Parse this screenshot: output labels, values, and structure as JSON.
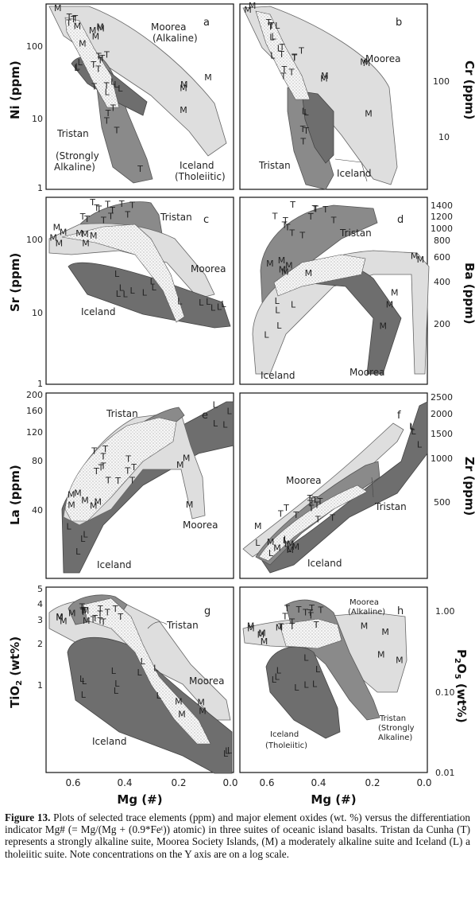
{
  "caption": {
    "label": "Figure 13.",
    "text": " Plots of selected trace elements (ppm) and major element oxides (wt. %) versus the differentiation indicator Mg# (= Mg/(Mg + (0.9*Feᵗ)) atomic) in three suites of oceanic island basalts. Tristan da Cunha (T) represents a strongly alkaline suite, Moorea Society Islands, (M) a moderately alkaline suite and Iceland (L) a tholeiitic suite. Note concentrations on the Y axis are on a log scale."
  },
  "x_axis": {
    "label": "Mg (#)",
    "ticks": [
      "0.6",
      "0.4",
      "0.2",
      "0.0"
    ]
  },
  "chart_data": [
    {
      "type": "scatter",
      "panel": "a",
      "ylabel": "Ni (ppm)",
      "yscale": "log",
      "ylim": [
        1,
        400
      ],
      "yticks": [
        "1",
        "10",
        "100"
      ],
      "xlim": [
        0.7,
        0.0
      ],
      "labels": [
        "Moorea",
        "(Alkaline)",
        "Tristan",
        "(Strongly",
        "Alkaline)",
        "Iceland",
        "(Tholeiitic)"
      ],
      "series": [
        {
          "name": "T",
          "symbol": "T"
        },
        {
          "name": "M",
          "symbol": "M"
        },
        {
          "name": "L",
          "symbol": "L"
        }
      ]
    },
    {
      "type": "scatter",
      "panel": "b",
      "ylabel": "Cr (ppm)",
      "yscale": "log",
      "ylim": [
        3,
        300
      ],
      "yticks": [
        "10",
        "100"
      ],
      "xlim": [
        0.7,
        0.0
      ],
      "labels": [
        "Moorea",
        "Tristan",
        "Iceland"
      ]
    },
    {
      "type": "scatter",
      "panel": "c",
      "ylabel": "Sr (ppm)",
      "yscale": "log",
      "ylim": [
        1,
        500
      ],
      "yticks": [
        "1",
        "10",
        "100"
      ],
      "xlim": [
        0.7,
        0.0
      ],
      "labels": [
        "Tristan",
        "Moorea",
        "Iceland"
      ]
    },
    {
      "type": "scatter",
      "panel": "d",
      "ylabel": "Ba (ppm)",
      "yscale": "log",
      "ylim": [
        100,
        1500
      ],
      "yticks": [
        "1400",
        "1200",
        "1000",
        "800",
        "600",
        "400",
        "200"
      ],
      "xlim": [
        0.7,
        0.0
      ],
      "labels": [
        "Tristan",
        "Iceland",
        "Moorea"
      ]
    },
    {
      "type": "scatter",
      "panel": "e",
      "ylabel": "La (ppm)",
      "yscale": "log",
      "ylim": [
        15,
        200
      ],
      "yticks": [
        "200",
        "160",
        "120",
        "80",
        "40"
      ],
      "xlim": [
        0.7,
        0.0
      ],
      "labels": [
        "Tristan",
        "Moorea",
        "Iceland"
      ]
    },
    {
      "type": "scatter",
      "panel": "f",
      "ylabel": "Zr (ppm)",
      "yscale": "log",
      "ylim": [
        150,
        2500
      ],
      "yticks": [
        "2500",
        "2000",
        "1500",
        "1000",
        "500"
      ],
      "xlim": [
        0.7,
        0.0
      ],
      "labels": [
        "Moorea",
        "Tristan",
        "Iceland"
      ]
    },
    {
      "type": "scatter",
      "panel": "g",
      "ylabel": "TiO2 (wt%)",
      "yscale": "log",
      "ylim": [
        0.4,
        5
      ],
      "yticks": [
        "5",
        "4",
        "3",
        "2",
        "1"
      ],
      "xlim": [
        0.7,
        0.0
      ],
      "labels": [
        "Tristan",
        "Moorea",
        "Iceland"
      ]
    },
    {
      "type": "scatter",
      "panel": "h",
      "ylabel": "P2O5 (wt%)",
      "yscale": "log",
      "ylim": [
        0.01,
        2
      ],
      "yticks": [
        "1.00",
        "0.10",
        "0.01"
      ],
      "xlim": [
        0.7,
        0.0
      ],
      "labels": [
        "Moorea",
        "(Alkaline)",
        "Tristan",
        "(Strongly",
        "Alkaline)",
        "Iceland",
        "(Tholeiitic)"
      ]
    }
  ],
  "colors": {
    "moorea": "#dcdcdc",
    "tristan": "#7a7a7a",
    "iceland": "#6e6e6e",
    "stipple": "#f4f4f4"
  }
}
